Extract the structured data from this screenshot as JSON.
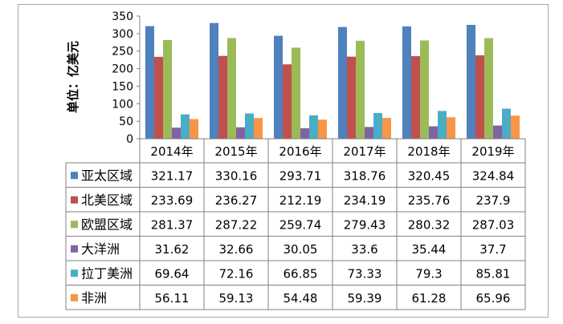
{
  "chart_data": {
    "type": "bar",
    "ylabel": "单位：亿美元",
    "ylim": [
      0,
      350
    ],
    "yticks": [
      0,
      50,
      100,
      150,
      200,
      250,
      300,
      350
    ],
    "categories": [
      "2014年",
      "2015年",
      "2016年",
      "2017年",
      "2018年",
      "2019年"
    ],
    "series": [
      {
        "name": "亚太区域",
        "color": "#4f81bd",
        "values": [
          321.17,
          330.16,
          293.71,
          318.76,
          320.45,
          324.84
        ]
      },
      {
        "name": "北美区域",
        "color": "#c0504d",
        "values": [
          233.69,
          236.27,
          212.19,
          234.19,
          235.76,
          237.9
        ]
      },
      {
        "name": "欧盟区域",
        "color": "#9bbb59",
        "values": [
          281.37,
          287.22,
          259.74,
          279.43,
          280.32,
          287.03
        ]
      },
      {
        "name": "大洋洲",
        "color": "#8064a2",
        "values": [
          31.62,
          32.66,
          30.05,
          33.6,
          35.44,
          37.7
        ]
      },
      {
        "name": "拉丁美洲",
        "color": "#4bacc6",
        "values": [
          69.64,
          72.16,
          66.85,
          73.33,
          79.3,
          85.81
        ]
      },
      {
        "name": "非洲",
        "color": "#f79646",
        "values": [
          56.11,
          59.13,
          54.48,
          59.39,
          61.28,
          65.96
        ]
      }
    ],
    "table_labels": [
      [
        "321.17",
        "330.16",
        "293.71",
        "318.76",
        "320.45",
        "324.84"
      ],
      [
        "233.69",
        "236.27",
        "212.19",
        "234.19",
        "235.76",
        "237.9"
      ],
      [
        "281.37",
        "287.22",
        "259.74",
        "279.43",
        "280.32",
        "287.03"
      ],
      [
        "31.62",
        "32.66",
        "30.05",
        "33.6",
        "35.44",
        "37.7"
      ],
      [
        "69.64",
        "72.16",
        "66.85",
        "73.33",
        "79.3",
        "85.81"
      ],
      [
        "56.11",
        "59.13",
        "54.48",
        "59.39",
        "61.28",
        "65.96"
      ]
    ],
    "grid": false,
    "legend": "data-table"
  }
}
